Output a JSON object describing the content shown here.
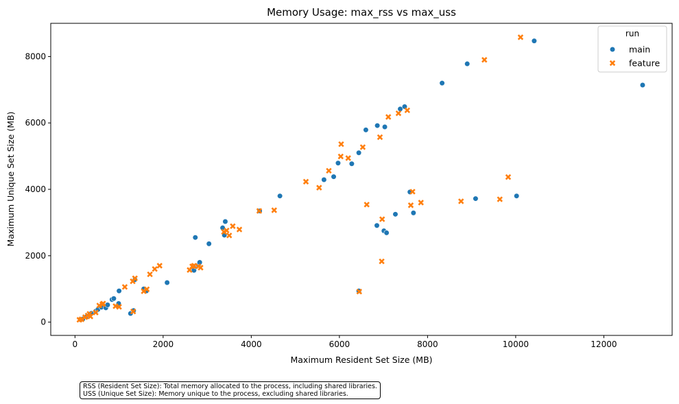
{
  "chart_data": {
    "type": "scatter",
    "title": "Memory Usage: max_rss vs max_uss",
    "xlabel": "Maximum Resident Set Size (MB)",
    "ylabel": "Maximum Unique Set Size (MB)",
    "xlim": [
      -550,
      13550
    ],
    "ylim": [
      -400,
      9000
    ],
    "xticks": [
      0,
      2000,
      4000,
      6000,
      8000,
      10000,
      12000
    ],
    "yticks": [
      0,
      2000,
      4000,
      6000,
      8000
    ],
    "xtick_labels": [
      "0",
      "2000",
      "4000",
      "6000",
      "8000",
      "10000",
      "12000"
    ],
    "ytick_labels": [
      "0",
      "2000",
      "4000",
      "6000",
      "8000"
    ],
    "grid": false,
    "legend": {
      "title": "run",
      "position": "top-right"
    },
    "series": [
      {
        "name": "main",
        "marker": "circle",
        "color": "#1f77b4",
        "points": [
          [
            130,
            75
          ],
          [
            180,
            95
          ],
          [
            260,
            160
          ],
          [
            330,
            210
          ],
          [
            370,
            265
          ],
          [
            470,
            330
          ],
          [
            520,
            380
          ],
          [
            600,
            450
          ],
          [
            700,
            430
          ],
          [
            740,
            520
          ],
          [
            840,
            680
          ],
          [
            880,
            710
          ],
          [
            970,
            500
          ],
          [
            990,
            560
          ],
          [
            1000,
            940
          ],
          [
            1260,
            260
          ],
          [
            1330,
            350
          ],
          [
            1360,
            1280
          ],
          [
            1560,
            1000
          ],
          [
            1620,
            940
          ],
          [
            2090,
            1190
          ],
          [
            2700,
            1560
          ],
          [
            2740,
            1680
          ],
          [
            2730,
            2550
          ],
          [
            2800,
            1720
          ],
          [
            2830,
            1800
          ],
          [
            3040,
            2360
          ],
          [
            3350,
            2840
          ],
          [
            3390,
            2620
          ],
          [
            3410,
            3030
          ],
          [
            4190,
            3350
          ],
          [
            4650,
            3800
          ],
          [
            5650,
            4290
          ],
          [
            5870,
            4380
          ],
          [
            5970,
            4790
          ],
          [
            6280,
            4770
          ],
          [
            6440,
            5100
          ],
          [
            6440,
            940
          ],
          [
            6600,
            5790
          ],
          [
            6850,
            2910
          ],
          [
            6860,
            5920
          ],
          [
            7010,
            2750
          ],
          [
            7030,
            5880
          ],
          [
            7070,
            2690
          ],
          [
            7270,
            3250
          ],
          [
            7380,
            6420
          ],
          [
            7480,
            6490
          ],
          [
            7600,
            3920
          ],
          [
            7680,
            3290
          ],
          [
            8330,
            7200
          ],
          [
            8900,
            7780
          ],
          [
            9090,
            3720
          ],
          [
            10020,
            3800
          ],
          [
            10420,
            8470
          ],
          [
            12880,
            7140
          ]
        ]
      },
      {
        "name": "feature",
        "marker": "x",
        "color": "#ff7f0e",
        "points": [
          [
            100,
            70
          ],
          [
            150,
            85
          ],
          [
            230,
            150
          ],
          [
            290,
            200
          ],
          [
            330,
            250
          ],
          [
            350,
            170
          ],
          [
            470,
            290
          ],
          [
            550,
            500
          ],
          [
            620,
            540
          ],
          [
            640,
            560
          ],
          [
            920,
            480
          ],
          [
            1000,
            460
          ],
          [
            1130,
            1060
          ],
          [
            1310,
            1230
          ],
          [
            1320,
            320
          ],
          [
            1360,
            1320
          ],
          [
            1560,
            930
          ],
          [
            1630,
            990
          ],
          [
            1700,
            1440
          ],
          [
            1810,
            1600
          ],
          [
            1920,
            1700
          ],
          [
            2600,
            1570
          ],
          [
            2660,
            1680
          ],
          [
            2700,
            1700
          ],
          [
            2800,
            1680
          ],
          [
            2850,
            1640
          ],
          [
            3380,
            2720
          ],
          [
            3440,
            2760
          ],
          [
            3500,
            2610
          ],
          [
            3580,
            2890
          ],
          [
            3730,
            2790
          ],
          [
            4180,
            3350
          ],
          [
            4520,
            3370
          ],
          [
            5240,
            4230
          ],
          [
            5540,
            4050
          ],
          [
            5760,
            4560
          ],
          [
            6030,
            4990
          ],
          [
            6040,
            5360
          ],
          [
            6200,
            4940
          ],
          [
            6450,
            920
          ],
          [
            6530,
            5270
          ],
          [
            6620,
            3540
          ],
          [
            6920,
            5570
          ],
          [
            6960,
            1830
          ],
          [
            6970,
            3100
          ],
          [
            7110,
            6180
          ],
          [
            7340,
            6290
          ],
          [
            7540,
            6380
          ],
          [
            7620,
            3520
          ],
          [
            7660,
            3930
          ],
          [
            7850,
            3600
          ],
          [
            8760,
            3640
          ],
          [
            9290,
            7900
          ],
          [
            9640,
            3700
          ],
          [
            9830,
            4370
          ],
          [
            10110,
            8580
          ]
        ]
      }
    ]
  },
  "notes": [
    "RSS (Resident Set Size): Total memory allocated to the process, including shared libraries.",
    "USS (Unique Set Size): Memory unique to the process, excluding shared libraries."
  ]
}
